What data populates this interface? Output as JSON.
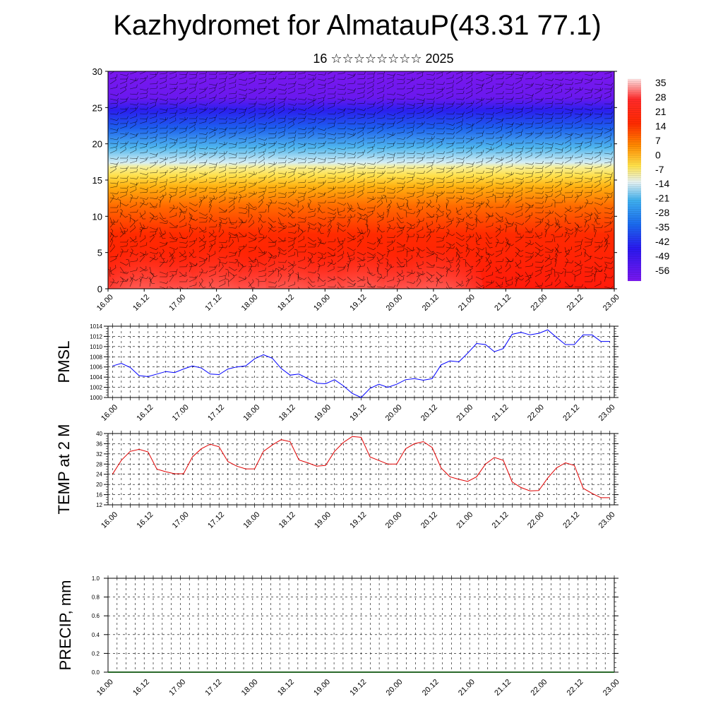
{
  "header": {
    "title": "Kazhydromet for AlmatauP(43.31 77.1)",
    "subtitle": "16 ☆☆☆☆☆☆☆☆ 2025"
  },
  "time_labels": [
    "16.00",
    "16.12",
    "17.00",
    "17.12",
    "18.00",
    "18.12",
    "19.00",
    "19.12",
    "20.00",
    "20.12",
    "21.00",
    "21.12",
    "22.00",
    "22.12",
    "23.00"
  ],
  "colorbar": {
    "labels": [
      "35",
      "28",
      "21",
      "14",
      "7",
      "0",
      "-7",
      "-14",
      "-21",
      "-28",
      "-35",
      "-42",
      "-49",
      "-56"
    ]
  },
  "colors": {
    "pmsl_line": "#0000ff",
    "temp_line": "#e00000",
    "grid": "#000000"
  },
  "chart_data": [
    {
      "type": "heatmap",
      "title": "",
      "xlabel": "",
      "ylabel": "",
      "x": [
        "16.00",
        "16.12",
        "17.00",
        "17.12",
        "18.00",
        "18.12",
        "19.00",
        "19.12",
        "20.00",
        "20.12",
        "21.00",
        "21.12",
        "22.00",
        "22.12",
        "23.00"
      ],
      "ylim": [
        0,
        30
      ],
      "yticks": [
        0,
        5,
        10,
        15,
        20,
        25,
        30
      ],
      "zlim": [
        -56,
        35
      ],
      "colorscale": [
        "#7a17ee",
        "#3a16ee",
        "#1a5fee",
        "#2fa6ee",
        "#8fd8ee",
        "#e6ecc8",
        "#ffef6a",
        "#ffc11a",
        "#ff8f00",
        "#ff4a00",
        "#ff1a0a",
        "#ff6a6a",
        "#ffd5d5"
      ],
      "wind_barbs": true
    },
    {
      "type": "line",
      "ylabel": "PMSL",
      "xlabel": "",
      "ylim": [
        1000,
        1014
      ],
      "yticks": [
        1000,
        1002,
        1004,
        1006,
        1008,
        1010,
        1012,
        1014
      ],
      "grid": true,
      "x_hours": [
        0,
        3,
        6,
        9,
        12,
        15,
        18,
        21,
        24,
        27,
        30,
        33,
        36,
        39,
        42,
        45,
        48,
        51,
        54,
        57,
        60,
        63,
        66,
        69,
        72,
        75,
        78,
        81,
        84,
        87,
        90,
        93,
        96,
        99,
        102,
        105,
        108,
        111,
        114,
        117,
        120,
        123,
        126,
        129,
        132,
        135,
        138,
        141,
        144,
        147,
        150,
        153,
        156,
        159,
        162,
        165,
        168
      ],
      "series": [
        {
          "values": [
            1006.2,
            1006.7,
            1005.9,
            1004.3,
            1004.1,
            1004.6,
            1005.1,
            1004.9,
            1005.6,
            1006.2,
            1005.8,
            1004.6,
            1004.5,
            1005.6,
            1006.0,
            1006.2,
            1007.6,
            1008.4,
            1007.7,
            1005.7,
            1004.4,
            1004.6,
            1003.7,
            1002.8,
            1002.7,
            1003.5,
            1002.3,
            1000.8,
            1000.0,
            1001.8,
            1002.6,
            1002.0,
            1002.6,
            1003.5,
            1003.7,
            1003.4,
            1003.7,
            1006.4,
            1007.2,
            1007.0,
            1008.7,
            1010.6,
            1010.4,
            1009.0,
            1009.6,
            1012.4,
            1012.8,
            1012.3,
            1012.6,
            1013.3,
            1011.8,
            1010.4,
            1010.4,
            1012.3,
            1012.3,
            1011.0,
            1011.0
          ]
        }
      ]
    },
    {
      "type": "line",
      "ylabel": "TEMP at 2 M",
      "xlabel": "",
      "ylim": [
        12,
        40
      ],
      "yticks": [
        12,
        16,
        20,
        24,
        28,
        32,
        36,
        40
      ],
      "grid": true,
      "x_hours": [
        0,
        3,
        6,
        9,
        12,
        15,
        18,
        21,
        24,
        27,
        30,
        33,
        36,
        39,
        42,
        45,
        48,
        51,
        54,
        57,
        60,
        63,
        66,
        69,
        72,
        75,
        78,
        81,
        84,
        87,
        90,
        93,
        96,
        99,
        102,
        105,
        108,
        111,
        114,
        117,
        120,
        123,
        126,
        129,
        132,
        135,
        138,
        141,
        144,
        147,
        150,
        153,
        156,
        159,
        162,
        165,
        168
      ],
      "series": [
        {
          "values": [
            24.0,
            29.5,
            33.0,
            33.8,
            32.8,
            26.0,
            25.0,
            24.2,
            24.2,
            30.8,
            34.0,
            35.8,
            34.8,
            29.0,
            27.2,
            26.1,
            26.1,
            33.0,
            35.5,
            37.6,
            36.8,
            29.6,
            28.5,
            27.2,
            27.5,
            33.0,
            36.5,
            38.8,
            38.5,
            30.8,
            29.4,
            28.0,
            28.0,
            34.0,
            36.0,
            36.8,
            34.5,
            26.5,
            23.0,
            22.0,
            21.2,
            23.0,
            28.0,
            30.6,
            29.5,
            21.0,
            18.8,
            17.5,
            17.6,
            22.5,
            26.5,
            28.5,
            27.5,
            18.5,
            16.5,
            14.8,
            14.8
          ]
        }
      ]
    },
    {
      "type": "bar",
      "ylabel": "PRECIP, mm",
      "xlabel": "",
      "ylim": [
        0.0,
        1.0
      ],
      "yticks": [
        "0.0",
        "0.2",
        "0.4",
        "0.6",
        "0.8",
        "1.0"
      ],
      "grid": true,
      "values_all_zero": true
    }
  ]
}
